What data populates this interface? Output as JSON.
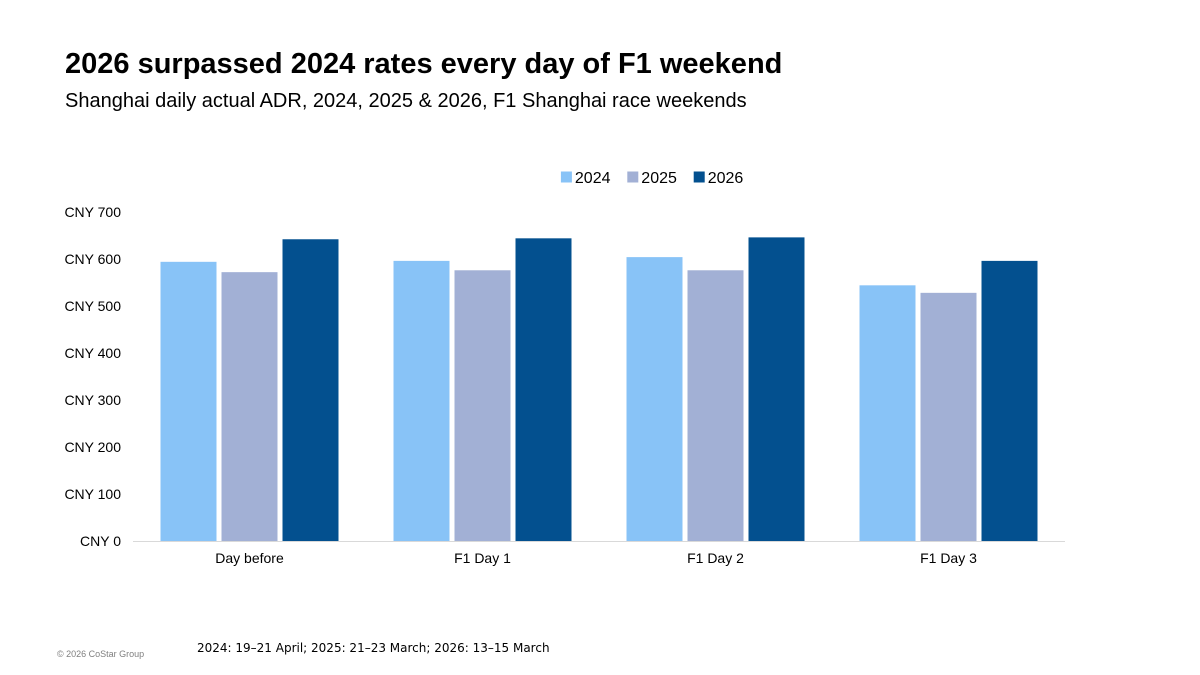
{
  "header": {
    "title": "2026 surpassed 2024 rates every day of F1 weekend",
    "subtitle": "Shanghai daily actual ADR, 2024, 2025 & 2026, F1 Shanghai race weekends"
  },
  "footer": {
    "footnote": "2024: 19–21 April; 2025: 21–23 March; 2026: 13–15 March",
    "copyright": "© 2026 CoStar Group"
  },
  "chart_data": {
    "type": "bar",
    "categories": [
      "Day before",
      "F1 Day 1",
      "F1 Day 2",
      "F1 Day 3"
    ],
    "series": [
      {
        "name": "2024",
        "color": "#88c3f7",
        "values": [
          594,
          596,
          604,
          544
        ]
      },
      {
        "name": "2025",
        "color": "#a2b0d5",
        "values": [
          572,
          576,
          576,
          528
        ]
      },
      {
        "name": "2026",
        "color": "#03508f",
        "values": [
          642,
          644,
          646,
          596
        ]
      }
    ],
    "yticks": [
      "CNY 0",
      "CNY 100",
      "CNY 200",
      "CNY 300",
      "CNY 400",
      "CNY 500",
      "CNY 600",
      "CNY 700"
    ],
    "ylim": [
      0,
      700
    ],
    "legend_position": "top-center",
    "grid": false
  }
}
